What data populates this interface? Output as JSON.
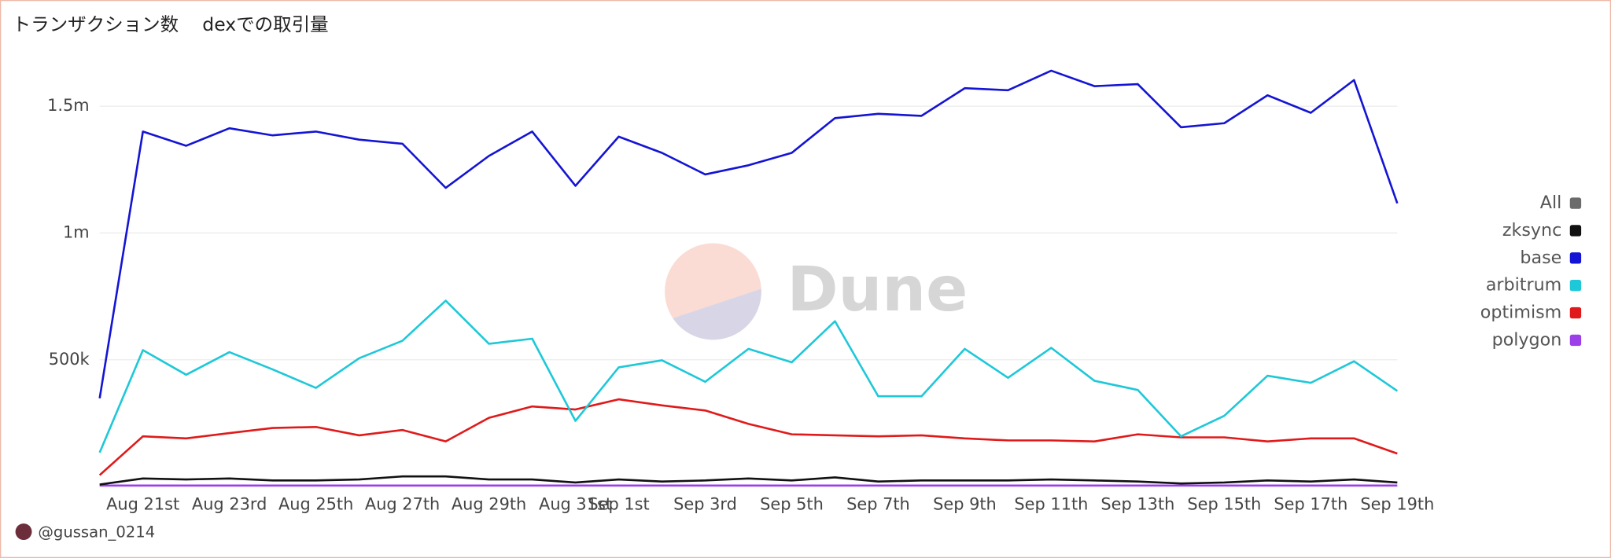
{
  "tabs": [
    "トランザクション数",
    "dexでの取引量"
  ],
  "author": "@gussan_0214",
  "watermark": "Dune",
  "chart_data": {
    "type": "line",
    "categories": [
      null,
      "Aug 21st",
      null,
      "Aug 23rd",
      null,
      "Aug 25th",
      null,
      "Aug 27th",
      null,
      "Aug 29th",
      null,
      "Aug 31st",
      "Sep 1st",
      null,
      "Sep 3rd",
      null,
      "Sep 5th",
      null,
      "Sep 7th",
      null,
      "Sep 9th",
      null,
      "Sep 11th",
      null,
      "Sep 13th",
      null,
      "Sep 15th",
      null,
      "Sep 17th",
      null,
      "Sep 19th"
    ],
    "ylim": [
      0,
      1750000
    ],
    "yticks": [
      {
        "value": 500000,
        "label": "500k"
      },
      {
        "value": 1000000,
        "label": "1m"
      },
      {
        "value": 1500000,
        "label": "1.5m"
      }
    ],
    "grid": true,
    "legend": "right",
    "series": [
      {
        "name": "All",
        "color": "#6b6b6b"
      },
      {
        "name": "zksync",
        "color": "#111111",
        "values": [
          8000,
          32000,
          28000,
          32000,
          24000,
          24000,
          28000,
          40000,
          40000,
          28000,
          28000,
          16000,
          28000,
          20000,
          24000,
          32000,
          24000,
          36000,
          20000,
          24000,
          24000,
          24000,
          28000,
          24000,
          20000,
          12000,
          16000,
          24000,
          20000,
          28000,
          16000
        ]
      },
      {
        "name": "base",
        "color": "#1414d4",
        "values": [
          348000,
          1400000,
          1344000,
          1413000,
          1385000,
          1400000,
          1368000,
          1352000,
          1178000,
          1304000,
          1400000,
          1186000,
          1380000,
          1316000,
          1231000,
          1267000,
          1316000,
          1453000,
          1470000,
          1462000,
          1571000,
          1563000,
          1640000,
          1579000,
          1587000,
          1417000,
          1433000,
          1543000,
          1474000,
          1603000,
          1117000
        ]
      },
      {
        "name": "arbitrum",
        "color": "#1ec8d8",
        "values": [
          134000,
          538000,
          441000,
          530000,
          462000,
          389000,
          506000,
          575000,
          733000,
          563000,
          583000,
          259000,
          470000,
          498000,
          413000,
          543000,
          490000,
          652000,
          356000,
          356000,
          543000,
          429000,
          547000,
          417000,
          381000,
          198000,
          279000,
          437000,
          409000,
          494000,
          377000
        ]
      },
      {
        "name": "optimism",
        "color": "#e01a1a",
        "values": [
          45000,
          198000,
          190000,
          211000,
          231000,
          235000,
          202000,
          223000,
          178000,
          271000,
          316000,
          304000,
          344000,
          320000,
          300000,
          247000,
          206000,
          202000,
          198000,
          202000,
          190000,
          182000,
          182000,
          178000,
          206000,
          194000,
          194000,
          178000,
          190000,
          190000,
          130000
        ]
      },
      {
        "name": "polygon",
        "color": "#9b40e8",
        "values": [
          4000,
          4000,
          4000,
          4000,
          4000,
          4000,
          4000,
          4000,
          4000,
          4000,
          4000,
          4000,
          4000,
          4000,
          4000,
          4000,
          4000,
          4000,
          4000,
          4000,
          4000,
          4000,
          4000,
          4000,
          4000,
          4000,
          4000,
          4000,
          4000,
          4000,
          4000
        ]
      }
    ]
  }
}
